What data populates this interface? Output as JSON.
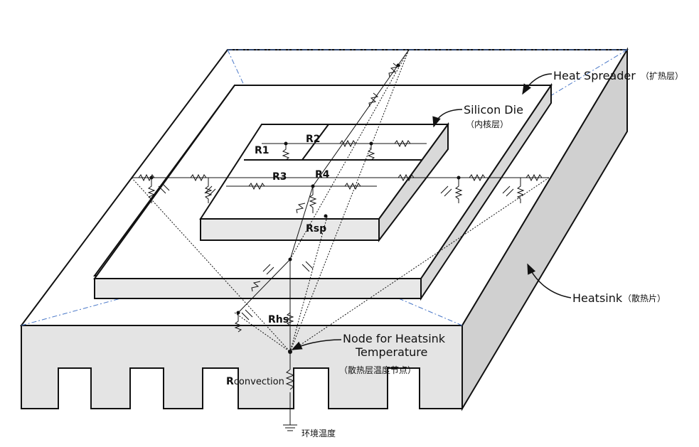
{
  "labels": {
    "heat_spreader": "Heat Spreader",
    "heat_spreader_cn": "（扩热层）",
    "silicon_die": "Silicon Die",
    "silicon_die_cn": "（内核层）",
    "heatsink": "Heatsink",
    "heatsink_cn": "（散热片）",
    "node_line1": "Node for Heatsink",
    "node_line2": "Temperature",
    "node_cn": "（散热层温度节点）",
    "ambient_cn": "环境温度"
  },
  "resistors": {
    "r1": "R1",
    "r2": "R2",
    "r3": "R3",
    "r4": "R4",
    "rsp": "Rsp",
    "rhs": "Rhs",
    "rconv_main": "R",
    "rconv_sub": "convection"
  },
  "colors": {
    "heatsink_side": "#d0d0d0",
    "heatsink_front": "#e4e4e4",
    "slab_front": "#e8e8e8",
    "dashdot_guides": "#4a78c8",
    "outline": "#111111"
  }
}
